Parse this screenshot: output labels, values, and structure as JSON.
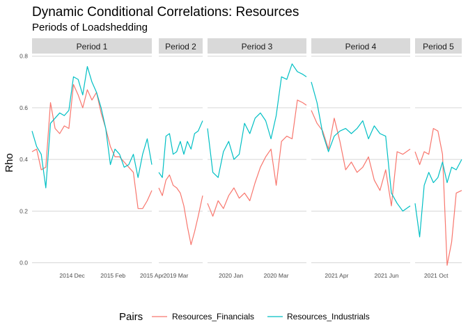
{
  "chart_data": {
    "type": "line",
    "title": "Dynamic Conditional Correlations: Resources",
    "subtitle": "Periods of Loadshedding",
    "ylabel": "Rho",
    "xlabel": "",
    "ylim": [
      -0.02,
      0.81
    ],
    "y_ticks": [
      "0.0",
      "0.2",
      "0.4",
      "0.6",
      "0.8"
    ],
    "y_tick_values": [
      0.0,
      0.2,
      0.4,
      0.6,
      0.8
    ],
    "legend": {
      "title": "Pairs",
      "position": "bottom",
      "entries": [
        {
          "name": "Resources_Financials",
          "color": "#F8766D"
        },
        {
          "name": "Resources_Industrials",
          "color": "#00BFC4"
        }
      ]
    },
    "series_colors": {
      "Resources_Financials": "#F8766D",
      "Resources_Industrials": "#00BFC4"
    },
    "panels": [
      {
        "name": "Period 1",
        "x_start": "2014-10-01",
        "x_end": "2015-04-01",
        "x_ticks": [
          {
            "label": "2014 Dec",
            "date": "2014-12-01"
          },
          {
            "label": "2015 Feb",
            "date": "2015-02-01"
          },
          {
            "label": "2015 Apr",
            "date": "2015-04-01"
          }
        ],
        "series": [
          {
            "name": "Resources_Financials",
            "x": [
              "2014-10-01",
              "2014-10-08",
              "2014-10-15",
              "2014-10-22",
              "2014-10-29",
              "2014-11-05",
              "2014-11-12",
              "2014-11-19",
              "2014-11-26",
              "2014-12-03",
              "2014-12-10",
              "2014-12-17",
              "2014-12-24",
              "2014-12-31",
              "2015-01-07",
              "2015-01-14",
              "2015-01-21",
              "2015-01-28",
              "2015-02-04",
              "2015-02-11",
              "2015-02-18",
              "2015-02-25",
              "2015-03-04",
              "2015-03-11",
              "2015-03-18",
              "2015-03-25",
              "2015-04-01"
            ],
            "y": [
              0.43,
              0.44,
              0.36,
              0.37,
              0.62,
              0.52,
              0.5,
              0.53,
              0.52,
              0.69,
              0.65,
              0.6,
              0.67,
              0.63,
              0.66,
              0.58,
              0.52,
              0.45,
              0.41,
              0.41,
              0.39,
              0.37,
              0.35,
              0.21,
              0.21,
              0.24,
              0.28
            ]
          },
          {
            "name": "Resources_Industrials",
            "x": [
              "2014-10-01",
              "2014-10-08",
              "2014-10-15",
              "2014-10-22",
              "2014-10-29",
              "2014-11-05",
              "2014-11-12",
              "2014-11-19",
              "2014-11-26",
              "2014-12-03",
              "2014-12-10",
              "2014-12-17",
              "2014-12-24",
              "2014-12-31",
              "2015-01-07",
              "2015-01-14",
              "2015-01-21",
              "2015-01-28",
              "2015-02-04",
              "2015-02-11",
              "2015-02-18",
              "2015-02-25",
              "2015-03-04",
              "2015-03-11",
              "2015-03-18",
              "2015-03-25",
              "2015-04-01"
            ],
            "y": [
              0.51,
              0.45,
              0.42,
              0.29,
              0.54,
              0.56,
              0.58,
              0.57,
              0.59,
              0.72,
              0.71,
              0.65,
              0.76,
              0.7,
              0.66,
              0.6,
              0.52,
              0.38,
              0.44,
              0.42,
              0.37,
              0.38,
              0.42,
              0.33,
              0.42,
              0.48,
              0.38
            ]
          }
        ]
      },
      {
        "name": "Period 2",
        "x_start": "2019-02-10",
        "x_end": "2019-03-31",
        "x_ticks": [
          {
            "label": "2019 Mar",
            "date": "2019-03-01"
          }
        ],
        "series": [
          {
            "name": "Resources_Financials",
            "x": [
              "2019-02-10",
              "2019-02-14",
              "2019-02-18",
              "2019-02-22",
              "2019-02-26",
              "2019-03-02",
              "2019-03-06",
              "2019-03-10",
              "2019-03-14",
              "2019-03-18",
              "2019-03-22",
              "2019-03-26",
              "2019-03-31"
            ],
            "y": [
              0.29,
              0.26,
              0.32,
              0.34,
              0.3,
              0.29,
              0.27,
              0.22,
              0.14,
              0.07,
              0.12,
              0.18,
              0.26
            ]
          },
          {
            "name": "Resources_Industrials",
            "x": [
              "2019-02-10",
              "2019-02-14",
              "2019-02-18",
              "2019-02-22",
              "2019-02-26",
              "2019-03-02",
              "2019-03-06",
              "2019-03-10",
              "2019-03-14",
              "2019-03-18",
              "2019-03-22",
              "2019-03-26",
              "2019-03-31"
            ],
            "y": [
              0.35,
              0.33,
              0.49,
              0.5,
              0.42,
              0.43,
              0.47,
              0.42,
              0.47,
              0.44,
              0.5,
              0.51,
              0.55
            ]
          }
        ]
      },
      {
        "name": "Period 3",
        "x_start": "2019-12-01",
        "x_end": "2020-04-10",
        "x_ticks": [
          {
            "label": "2020 Jan",
            "date": "2020-01-01"
          },
          {
            "label": "2020 Mar",
            "date": "2020-03-01"
          }
        ],
        "series": [
          {
            "name": "Resources_Financials",
            "x": [
              "2019-12-01",
              "2019-12-08",
              "2019-12-15",
              "2019-12-22",
              "2019-12-29",
              "2020-01-05",
              "2020-01-12",
              "2020-01-19",
              "2020-01-26",
              "2020-02-02",
              "2020-02-09",
              "2020-02-16",
              "2020-02-23",
              "2020-03-01",
              "2020-03-08",
              "2020-03-15",
              "2020-03-22",
              "2020-03-29",
              "2020-04-05",
              "2020-04-10"
            ],
            "y": [
              0.23,
              0.18,
              0.24,
              0.21,
              0.26,
              0.29,
              0.25,
              0.27,
              0.24,
              0.31,
              0.37,
              0.41,
              0.44,
              0.3,
              0.47,
              0.49,
              0.48,
              0.63,
              0.62,
              0.61
            ]
          },
          {
            "name": "Resources_Industrials",
            "x": [
              "2019-12-01",
              "2019-12-08",
              "2019-12-15",
              "2019-12-22",
              "2019-12-29",
              "2020-01-05",
              "2020-01-12",
              "2020-01-19",
              "2020-01-26",
              "2020-02-02",
              "2020-02-09",
              "2020-02-16",
              "2020-02-23",
              "2020-03-01",
              "2020-03-08",
              "2020-03-15",
              "2020-03-22",
              "2020-03-29",
              "2020-04-05",
              "2020-04-10"
            ],
            "y": [
              0.52,
              0.35,
              0.33,
              0.43,
              0.47,
              0.4,
              0.42,
              0.54,
              0.5,
              0.56,
              0.58,
              0.55,
              0.48,
              0.57,
              0.72,
              0.71,
              0.77,
              0.74,
              0.73,
              0.72
            ]
          }
        ]
      },
      {
        "name": "Period 4",
        "x_start": "2021-03-01",
        "x_end": "2021-06-30",
        "x_ticks": [
          {
            "label": "2021 Apr",
            "date": "2021-04-01"
          },
          {
            "label": "2021 Jun",
            "date": "2021-06-01"
          }
        ],
        "series": [
          {
            "name": "Resources_Financials",
            "x": [
              "2021-03-01",
              "2021-03-08",
              "2021-03-15",
              "2021-03-22",
              "2021-03-29",
              "2021-04-05",
              "2021-04-12",
              "2021-04-19",
              "2021-04-26",
              "2021-05-03",
              "2021-05-10",
              "2021-05-17",
              "2021-05-24",
              "2021-05-31",
              "2021-06-07",
              "2021-06-14",
              "2021-06-21",
              "2021-06-30"
            ],
            "y": [
              0.59,
              0.54,
              0.51,
              0.44,
              0.56,
              0.47,
              0.36,
              0.39,
              0.35,
              0.37,
              0.41,
              0.32,
              0.28,
              0.36,
              0.22,
              0.43,
              0.42,
              0.44
            ]
          },
          {
            "name": "Resources_Industrials",
            "x": [
              "2021-03-01",
              "2021-03-08",
              "2021-03-15",
              "2021-03-22",
              "2021-03-29",
              "2021-04-05",
              "2021-04-12",
              "2021-04-19",
              "2021-04-26",
              "2021-05-03",
              "2021-05-10",
              "2021-05-17",
              "2021-05-24",
              "2021-05-31",
              "2021-06-07",
              "2021-06-14",
              "2021-06-21",
              "2021-06-30"
            ],
            "y": [
              0.7,
              0.62,
              0.5,
              0.43,
              0.49,
              0.51,
              0.52,
              0.5,
              0.52,
              0.55,
              0.48,
              0.53,
              0.5,
              0.49,
              0.27,
              0.23,
              0.2,
              0.22
            ]
          }
        ]
      },
      {
        "name": "Period 5",
        "x_start": "2021-09-20",
        "x_end": "2021-11-10",
        "x_ticks": [
          {
            "label": "2021 Oct",
            "date": "2021-10-13"
          }
        ],
        "series": [
          {
            "name": "Resources_Financials",
            "x": [
              "2021-09-20",
              "2021-09-25",
              "2021-09-30",
              "2021-10-05",
              "2021-10-10",
              "2021-10-15",
              "2021-10-20",
              "2021-10-25",
              "2021-10-30",
              "2021-11-04",
              "2021-11-10"
            ],
            "y": [
              0.43,
              0.38,
              0.43,
              0.42,
              0.52,
              0.51,
              0.42,
              -0.01,
              0.08,
              0.27,
              0.28
            ]
          },
          {
            "name": "Resources_Industrials",
            "x": [
              "2021-09-20",
              "2021-09-25",
              "2021-09-30",
              "2021-10-05",
              "2021-10-10",
              "2021-10-15",
              "2021-10-20",
              "2021-10-25",
              "2021-10-30",
              "2021-11-04",
              "2021-11-10"
            ],
            "y": [
              0.23,
              0.1,
              0.3,
              0.35,
              0.31,
              0.33,
              0.39,
              0.31,
              0.37,
              0.36,
              0.4
            ]
          }
        ]
      }
    ]
  }
}
